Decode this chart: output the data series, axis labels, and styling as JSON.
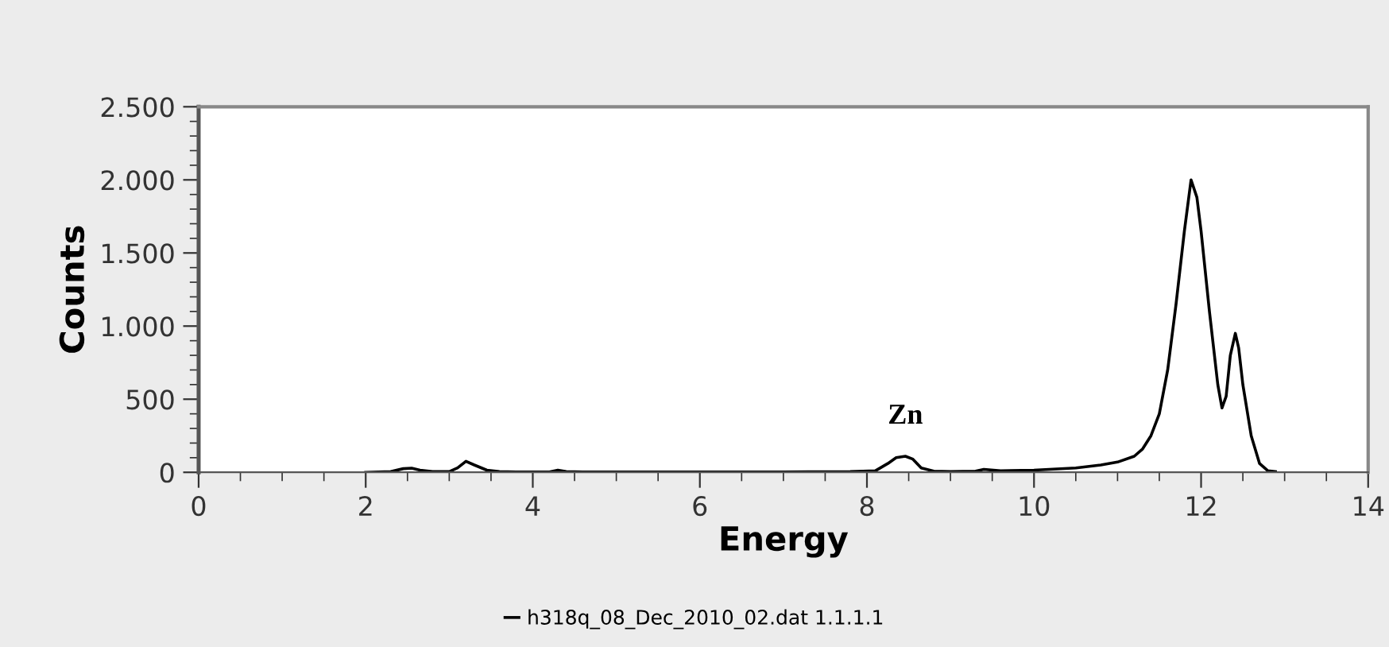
{
  "chart_data": {
    "type": "line",
    "xlabel": "Energy",
    "ylabel": "Counts",
    "legend": "bottom",
    "grid": false,
    "xlim": [
      0,
      14
    ],
    "xticks": [
      0,
      2,
      4,
      6,
      8,
      10,
      12,
      14
    ],
    "ylim": [
      0,
      2500
    ],
    "yticks": [
      0,
      500,
      {
        "value": 1000,
        "label": "1.000"
      },
      {
        "value": 1500,
        "label": "1.500"
      },
      {
        "value": 2000,
        "label": "2.000"
      },
      {
        "value": 2500,
        "label": "2.500"
      }
    ],
    "annotations": [
      {
        "text": "Zn",
        "x": 8.46,
        "y": 110
      }
    ],
    "series": [
      {
        "name": "h318q_08_Dec_2010_02.dat 1.1.1.1",
        "color": "#000000",
        "x": [
          2.0,
          2.3,
          2.45,
          2.55,
          2.65,
          2.8,
          3.0,
          3.1,
          3.2,
          3.3,
          3.45,
          3.6,
          3.8,
          4.2,
          4.3,
          4.4,
          4.6,
          5,
          6,
          7,
          7.8,
          8.1,
          8.25,
          8.35,
          8.46,
          8.55,
          8.65,
          8.8,
          9.0,
          9.3,
          9.4,
          9.6,
          10,
          10.5,
          10.8,
          11.0,
          11.2,
          11.3,
          11.4,
          11.5,
          11.6,
          11.7,
          11.8,
          11.88,
          11.95,
          12.0,
          12.1,
          12.2,
          12.25,
          12.3,
          12.35,
          12.41,
          12.45,
          12.5,
          12.6,
          12.7,
          12.8,
          12.89
        ],
        "values": [
          0,
          5,
          25,
          28,
          15,
          5,
          5,
          30,
          75,
          50,
          15,
          5,
          2,
          2,
          15,
          5,
          2,
          2,
          2,
          2,
          5,
          10,
          60,
          100,
          110,
          90,
          30,
          8,
          5,
          8,
          20,
          10,
          15,
          30,
          50,
          70,
          110,
          160,
          250,
          400,
          700,
          1150,
          1650,
          2000,
          1880,
          1650,
          1100,
          600,
          440,
          520,
          800,
          950,
          850,
          600,
          250,
          60,
          10,
          5
        ]
      }
    ]
  }
}
